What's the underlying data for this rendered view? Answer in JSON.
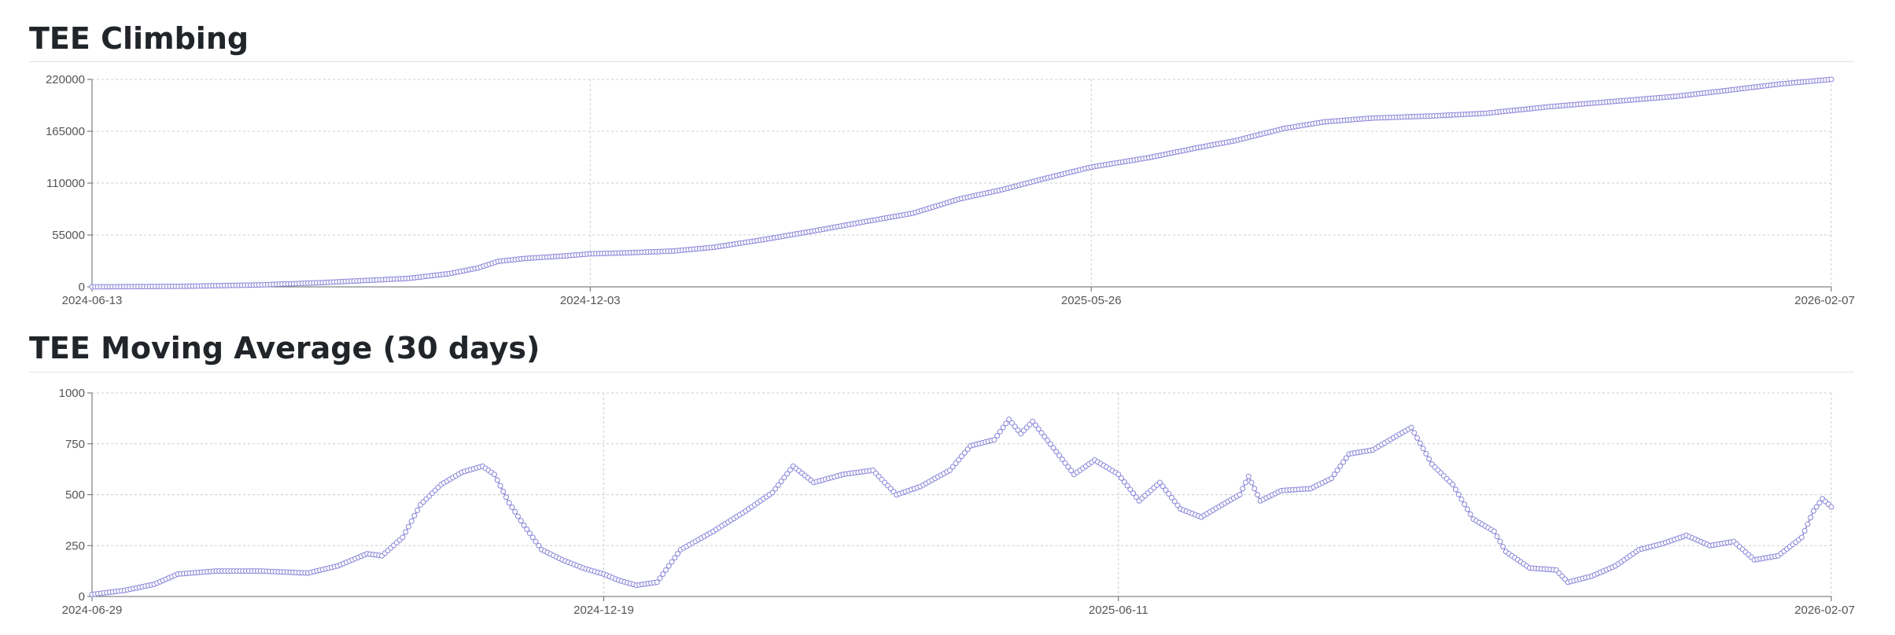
{
  "colors": {
    "series": "#8884d8",
    "grid": "#cccccc",
    "axis": "#666666",
    "tick_text": "#555555",
    "rule": "#dee2e6"
  },
  "chart_data": [
    {
      "type": "line",
      "title": "TEE Climbing",
      "xlabel": "",
      "ylabel": "",
      "x_range": [
        "2024-06-13",
        "2026-02-07"
      ],
      "ylim": [
        0,
        220000
      ],
      "y_ticks": [
        0,
        55000,
        110000,
        165000,
        220000
      ],
      "x_ticks": [
        "2024-06-13",
        "2024-12-03",
        "2025-05-26",
        "2026-02-07"
      ],
      "grid": true,
      "series": [
        {
          "values_by_date": [
            [
              "2024-06-13",
              0
            ],
            [
              "2024-07-15",
              600
            ],
            [
              "2024-08-10",
              2000
            ],
            [
              "2024-09-01",
              4500
            ],
            [
              "2024-10-01",
              9000
            ],
            [
              "2024-10-15",
              14000
            ],
            [
              "2024-10-25",
              20000
            ],
            [
              "2024-11-01",
              27000
            ],
            [
              "2024-11-10",
              30000
            ],
            [
              "2024-11-25",
              33000
            ],
            [
              "2024-12-03",
              35000
            ],
            [
              "2024-12-15",
              36000
            ],
            [
              "2025-01-01",
              38000
            ],
            [
              "2025-01-15",
              42000
            ],
            [
              "2025-02-01",
              50000
            ],
            [
              "2025-02-20",
              60000
            ],
            [
              "2025-03-10",
              70000
            ],
            [
              "2025-03-25",
              78000
            ],
            [
              "2025-04-10",
              93000
            ],
            [
              "2025-04-25",
              103000
            ],
            [
              "2025-05-10",
              115000
            ],
            [
              "2025-05-26",
              127000
            ],
            [
              "2025-06-15",
              137000
            ],
            [
              "2025-07-01",
              147000
            ],
            [
              "2025-07-15",
              155000
            ],
            [
              "2025-08-01",
              168000
            ],
            [
              "2025-08-15",
              175000
            ],
            [
              "2025-09-01",
              179000
            ],
            [
              "2025-09-20",
              181000
            ],
            [
              "2025-10-10",
              184000
            ],
            [
              "2025-11-01",
              191000
            ],
            [
              "2025-11-25",
              197000
            ],
            [
              "2025-12-15",
              202000
            ],
            [
              "2026-01-01",
              208000
            ],
            [
              "2026-01-20",
              215000
            ],
            [
              "2026-02-07",
              220000
            ]
          ]
        }
      ]
    },
    {
      "type": "line",
      "title": "TEE Moving Average (30 days)",
      "xlabel": "",
      "ylabel": "",
      "x_range": [
        "2024-06-29",
        "2026-02-07"
      ],
      "ylim": [
        0,
        1000
      ],
      "y_ticks": [
        0,
        250,
        500,
        750,
        1000
      ],
      "x_ticks": [
        "2024-06-29",
        "2024-12-19",
        "2025-06-11",
        "2026-02-07"
      ],
      "grid": true,
      "series": [
        {
          "values_by_date": [
            [
              "2024-06-29",
              10
            ],
            [
              "2024-07-10",
              30
            ],
            [
              "2024-07-20",
              60
            ],
            [
              "2024-07-28",
              110
            ],
            [
              "2024-08-10",
              125
            ],
            [
              "2024-08-25",
              125
            ],
            [
              "2024-09-10",
              115
            ],
            [
              "2024-09-20",
              150
            ],
            [
              "2024-09-30",
              210
            ],
            [
              "2024-10-05",
              200
            ],
            [
              "2024-10-12",
              290
            ],
            [
              "2024-10-18",
              450
            ],
            [
              "2024-10-25",
              550
            ],
            [
              "2024-11-01",
              610
            ],
            [
              "2024-11-08",
              640
            ],
            [
              "2024-11-12",
              600
            ],
            [
              "2024-11-17",
              460
            ],
            [
              "2024-11-22",
              350
            ],
            [
              "2024-11-28",
              230
            ],
            [
              "2024-12-05",
              180
            ],
            [
              "2024-12-12",
              140
            ],
            [
              "2024-12-19",
              110
            ],
            [
              "2024-12-24",
              80
            ],
            [
              "2024-12-30",
              55
            ],
            [
              "2025-01-06",
              70
            ],
            [
              "2025-01-14",
              230
            ],
            [
              "2025-01-25",
              320
            ],
            [
              "2025-02-05",
              420
            ],
            [
              "2025-02-14",
              510
            ],
            [
              "2025-02-21",
              640
            ],
            [
              "2025-02-28",
              560
            ],
            [
              "2025-03-10",
              600
            ],
            [
              "2025-03-20",
              620
            ],
            [
              "2025-03-28",
              500
            ],
            [
              "2025-04-05",
              540
            ],
            [
              "2025-04-15",
              620
            ],
            [
              "2025-04-22",
              740
            ],
            [
              "2025-04-30",
              770
            ],
            [
              "2025-05-05",
              870
            ],
            [
              "2025-05-09",
              800
            ],
            [
              "2025-05-13",
              860
            ],
            [
              "2025-05-20",
              730
            ],
            [
              "2025-05-27",
              600
            ],
            [
              "2025-06-03",
              670
            ],
            [
              "2025-06-11",
              600
            ],
            [
              "2025-06-18",
              470
            ],
            [
              "2025-06-25",
              560
            ],
            [
              "2025-07-02",
              430
            ],
            [
              "2025-07-09",
              390
            ],
            [
              "2025-07-16",
              450
            ],
            [
              "2025-07-22",
              500
            ],
            [
              "2025-07-25",
              590
            ],
            [
              "2025-07-29",
              470
            ],
            [
              "2025-08-05",
              520
            ],
            [
              "2025-08-15",
              530
            ],
            [
              "2025-08-22",
              580
            ],
            [
              "2025-08-28",
              700
            ],
            [
              "2025-09-05",
              720
            ],
            [
              "2025-09-12",
              780
            ],
            [
              "2025-09-18",
              830
            ],
            [
              "2025-09-25",
              650
            ],
            [
              "2025-10-02",
              550
            ],
            [
              "2025-10-09",
              380
            ],
            [
              "2025-10-16",
              320
            ],
            [
              "2025-10-20",
              220
            ],
            [
              "2025-10-28",
              140
            ],
            [
              "2025-11-06",
              130
            ],
            [
              "2025-11-10",
              70
            ],
            [
              "2025-11-18",
              100
            ],
            [
              "2025-11-26",
              150
            ],
            [
              "2025-12-04",
              230
            ],
            [
              "2025-12-12",
              260
            ],
            [
              "2025-12-20",
              300
            ],
            [
              "2025-12-28",
              250
            ],
            [
              "2026-01-05",
              270
            ],
            [
              "2026-01-12",
              180
            ],
            [
              "2026-01-20",
              200
            ],
            [
              "2026-01-28",
              290
            ],
            [
              "2026-02-01",
              420
            ],
            [
              "2026-02-04",
              480
            ],
            [
              "2026-02-07",
              440
            ]
          ]
        }
      ]
    }
  ]
}
